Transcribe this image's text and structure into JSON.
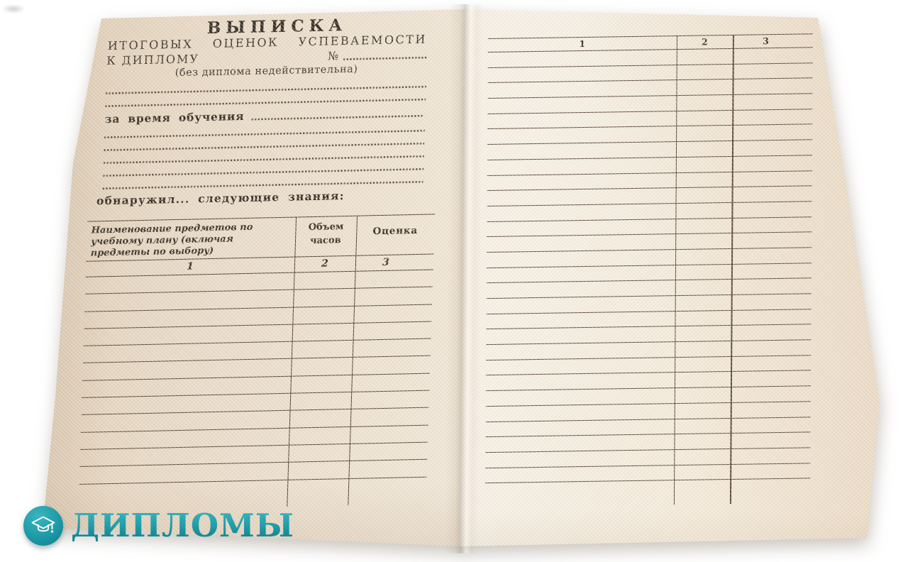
{
  "document": {
    "title": "ВЫПИСКА",
    "subtitle": "ИТОГОВЫХ ОЦЕНОК УСПЕВАЕМОСТИ",
    "diploma_line": {
      "label": "К ДИПЛОМУ",
      "number_sign": "№"
    },
    "validity_note": "(без диплома недействительна)",
    "study_period_label": "за время обучения",
    "knowledge_intro_label": "обнаружил... следующие знания:",
    "dotted_blank_lines": {
      "before_study": 2,
      "after_study": 5
    },
    "left_table": {
      "headers": {
        "col1": "Наименование предметов по учебному плану (включая предметы по выбору)",
        "col2": "Объем часов",
        "col3": "Оценка"
      },
      "column_numbers": [
        "1",
        "2",
        "3"
      ],
      "empty_row_count": 12
    },
    "right_table": {
      "column_numbers": [
        "1",
        "2",
        "3"
      ],
      "empty_row_count": 28
    }
  },
  "watermark": {
    "brand": "ДИПЛОМЫ",
    "accent_color": "#1b9aa6"
  }
}
